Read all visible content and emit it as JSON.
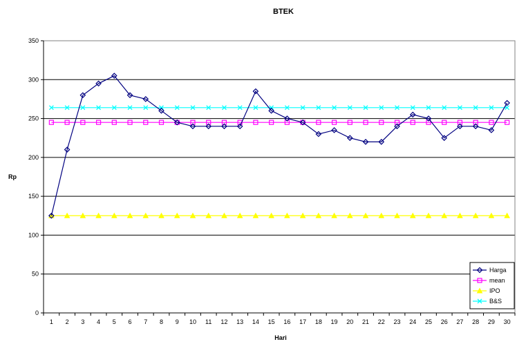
{
  "chart_data": {
    "type": "line",
    "title": "BTEK",
    "xlabel": "Hari",
    "ylabel": "Rp",
    "ylim": [
      0,
      350
    ],
    "y_ticks": [
      0,
      50,
      100,
      150,
      200,
      250,
      300,
      350
    ],
    "grid": true,
    "legend_position": "right",
    "categories": [
      "1",
      "2",
      "3",
      "4",
      "5",
      "6",
      "7",
      "8",
      "9",
      "10",
      "11",
      "12",
      "13",
      "14",
      "15",
      "16",
      "17",
      "18",
      "19",
      "20",
      "21",
      "22",
      "23",
      "24",
      "25",
      "26",
      "27",
      "28",
      "29",
      "30"
    ],
    "series": [
      {
        "name": "Harga",
        "color": "#000080",
        "marker": "diamond",
        "values": [
          125,
          210,
          280,
          295,
          305,
          280,
          275,
          260,
          245,
          240,
          240,
          240,
          240,
          285,
          260,
          250,
          245,
          230,
          235,
          225,
          220,
          220,
          240,
          255,
          250,
          225,
          240,
          240,
          235,
          270
        ]
      },
      {
        "name": "mean",
        "color": "#ff00ff",
        "marker": "square",
        "values": [
          245,
          245,
          245,
          245,
          245,
          245,
          245,
          245,
          245,
          245,
          245,
          245,
          245,
          245,
          245,
          245,
          245,
          245,
          245,
          245,
          245,
          245,
          245,
          245,
          245,
          245,
          245,
          245,
          245,
          245
        ]
      },
      {
        "name": "IPO",
        "color": "#ffff00",
        "marker": "triangle",
        "values": [
          125,
          125,
          125,
          125,
          125,
          125,
          125,
          125,
          125,
          125,
          125,
          125,
          125,
          125,
          125,
          125,
          125,
          125,
          125,
          125,
          125,
          125,
          125,
          125,
          125,
          125,
          125,
          125,
          125,
          125
        ]
      },
      {
        "name": "B&S",
        "color": "#00ffff",
        "marker": "x",
        "values": [
          264,
          264,
          264,
          264,
          264,
          264,
          264,
          264,
          264,
          264,
          264,
          264,
          264,
          264,
          264,
          264,
          264,
          264,
          264,
          264,
          264,
          264,
          264,
          264,
          264,
          264,
          264,
          264,
          264,
          264
        ]
      }
    ]
  }
}
